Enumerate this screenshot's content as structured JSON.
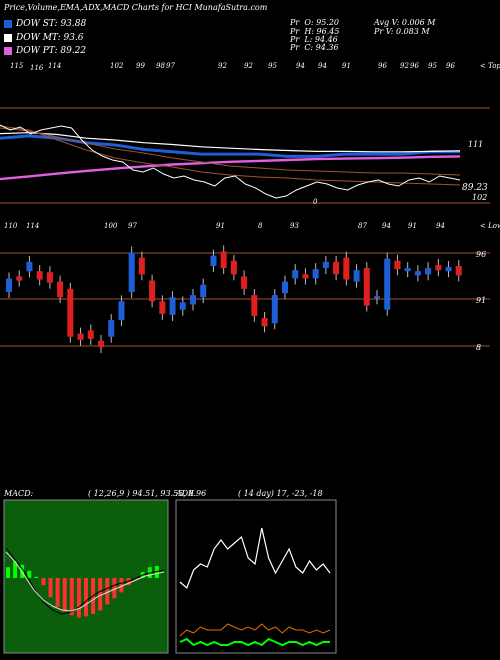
{
  "header": {
    "title": "Price,Volume,EMA,ADX,MACD Charts for HCI MunafaSutra.com",
    "stats": [
      {
        "label": "Pr",
        "value": "O: 95.20"
      },
      {
        "label": "Pr",
        "value": "H: 96.45"
      },
      {
        "label": "Pr",
        "value": "L: 94.46"
      },
      {
        "label": "Pr",
        "value": "C: 94.36"
      }
    ],
    "avg_v": "Avg V: 0.006  M",
    "pr_v": "Pr   V: 0.083 M"
  },
  "legend": [
    {
      "label": "DOW ST: 93.88",
      "color": "#1e5ed6"
    },
    {
      "label": "DOW MT: 93.6",
      "color": "#ffffff"
    },
    {
      "label": "DOW PT: 89.22",
      "color": "#e060e0"
    }
  ],
  "colors": {
    "up": "#1e5ed6",
    "down": "#e02020",
    "ema_st": "#1e5ed6",
    "ema_mt": "#ffffff",
    "ema_pt": "#e060e0",
    "band": "#a0522d",
    "macd_bg": "#0b5e0b",
    "adx_green": "#00ff00",
    "adx_orange": "#e07000"
  },
  "top_panel": {
    "top_labels": [
      "115",
      "116",
      "114",
      "102",
      "99",
      "98",
      "97",
      "92",
      "92",
      "95",
      "94",
      "94",
      "91",
      "96",
      "92",
      "96",
      "95",
      "96"
    ],
    "top_right_label": "< Tops",
    "bottom_labels": [
      "110",
      "114",
      "100",
      "97",
      "91",
      "8",
      "93",
      "87",
      "94",
      "91",
      "94"
    ],
    "bottom_right_label": "< Lows",
    "right_labels": [
      "111",
      "89.23",
      "102"
    ],
    "mid_label": "0"
  },
  "candle_panel": {
    "right_labels": [
      "96",
      "91",
      "8"
    ]
  },
  "macd": {
    "label": "MACD:",
    "values": "( 12,26,9 ) 94.51, 93.55, 0.96"
  },
  "adx": {
    "label": "ADX",
    "values": "( 14  day) 17,  -23,  -18"
  },
  "chart_data": [
    {
      "type": "line",
      "title": "Price,Volume,EMA,ADX,MACD Charts for HCI MunafaSutra.com",
      "series": [
        {
          "name": "DOW ST",
          "values": [
            103,
            103.5,
            103,
            102,
            101.5,
            100.5,
            100,
            99.5,
            99.5,
            99.5,
            99,
            99,
            99.5,
            99.5,
            99.5,
            100,
            100
          ]
        },
        {
          "name": "DOW MT",
          "values": [
            104,
            104.2,
            103.8,
            103,
            102.6,
            102,
            101.6,
            101.1,
            100.8,
            100.5,
            100.3,
            100.1,
            100.1,
            100,
            100,
            100.1,
            100.2
          ]
        },
        {
          "name": "DOW PT",
          "values": [
            94,
            94.6,
            95.2,
            95.8,
            96.3,
            96.8,
            97.2,
            97.5,
            97.8,
            98,
            98.2,
            98.4,
            98.5,
            98.6,
            98.7,
            98.9,
            99
          ]
        }
      ],
      "ylim": [
        85,
        118
      ]
    },
    {
      "type": "bar",
      "title": "",
      "candles": [
        {
          "o": 93.5,
          "c": 94.8
        },
        {
          "o": 95.0,
          "c": 94.6
        },
        {
          "o": 95.5,
          "c": 96.4
        },
        {
          "o": 95.5,
          "c": 94.7
        },
        {
          "o": 95.4,
          "c": 94.4
        },
        {
          "o": 94.5,
          "c": 93.0
        },
        {
          "o": 93.8,
          "c": 89.2
        },
        {
          "o": 89.5,
          "c": 88.9
        },
        {
          "o": 89.8,
          "c": 89.0
        },
        {
          "o": 88.8,
          "c": 88.2
        },
        {
          "o": 89.2,
          "c": 90.8
        },
        {
          "o": 90.8,
          "c": 92.6
        },
        {
          "o": 93.5,
          "c": 97.3
        },
        {
          "o": 96.8,
          "c": 95.2
        },
        {
          "o": 94.6,
          "c": 92.6
        },
        {
          "o": 92.6,
          "c": 91.4
        },
        {
          "o": 91.3,
          "c": 93.0
        },
        {
          "o": 91.8,
          "c": 92.5
        },
        {
          "o": 92.3,
          "c": 93.2
        },
        {
          "o": 93.0,
          "c": 94.2
        },
        {
          "o": 96.0,
          "c": 97.0
        },
        {
          "o": 97.4,
          "c": 95.8
        },
        {
          "o": 96.5,
          "c": 95.2
        },
        {
          "o": 95.0,
          "c": 93.8
        },
        {
          "o": 93.2,
          "c": 91.2
        },
        {
          "o": 91.0,
          "c": 90.2
        },
        {
          "o": 90.5,
          "c": 93.2
        },
        {
          "o": 93.4,
          "c": 94.5
        },
        {
          "o": 94.8,
          "c": 95.6
        },
        {
          "o": 95.2,
          "c": 94.8
        },
        {
          "o": 94.8,
          "c": 95.7
        },
        {
          "o": 95.8,
          "c": 96.4
        },
        {
          "o": 96.4,
          "c": 95.2
        },
        {
          "o": 96.8,
          "c": 94.7
        },
        {
          "o": 94.5,
          "c": 95.6
        },
        {
          "o": 95.8,
          "c": 92.2
        },
        {
          "o": 92.9,
          "c": 93.1
        },
        {
          "o": 91.8,
          "c": 96.7
        },
        {
          "o": 96.5,
          "c": 95.7
        },
        {
          "o": 95.5,
          "c": 95.8
        },
        {
          "o": 95.1,
          "c": 95.5
        },
        {
          "o": 95.2,
          "c": 95.8
        },
        {
          "o": 96.1,
          "c": 95.6
        },
        {
          "o": 95.5,
          "c": 95.9
        },
        {
          "o": 96.0,
          "c": 95.1
        }
      ],
      "ylim": [
        86,
        98.5
      ]
    },
    {
      "type": "bar",
      "title": "MACD:",
      "series": [
        {
          "name": "MACD",
          "values": [
            0.9,
            1.4,
            1.1,
            0.6,
            0.1,
            -0.6,
            -1.6,
            -2.4,
            -2.8,
            -3.1,
            -3.3,
            -3.2,
            -3.0,
            -2.7,
            -2.2,
            -1.7,
            -1.2,
            -0.6,
            -0.1,
            0.5,
            0.9,
            1.0
          ]
        }
      ],
      "ylim": [
        -6,
        4
      ]
    },
    {
      "type": "line",
      "title": "ADX",
      "series": [
        {
          "name": "",
          "values": [
            22,
            20,
            26,
            28,
            27,
            33,
            36,
            33,
            35,
            37,
            30,
            28,
            40,
            30,
            25,
            29,
            33,
            27,
            25,
            29,
            26,
            28,
            25
          ]
        },
        {
          "name": "",
          "values": [
            4,
            6,
            5,
            7,
            6,
            6,
            6,
            8,
            7,
            6,
            7,
            6,
            8,
            6,
            7,
            5,
            7,
            6,
            6,
            5,
            6,
            5,
            6
          ]
        },
        {
          "name": "",
          "values": [
            2,
            3,
            1,
            2,
            1,
            2,
            1,
            1,
            2,
            2,
            1,
            2,
            1,
            3,
            2,
            1,
            2,
            2,
            1,
            2,
            1,
            2,
            2
          ]
        }
      ],
      "ylim": [
        0,
        50
      ]
    }
  ]
}
